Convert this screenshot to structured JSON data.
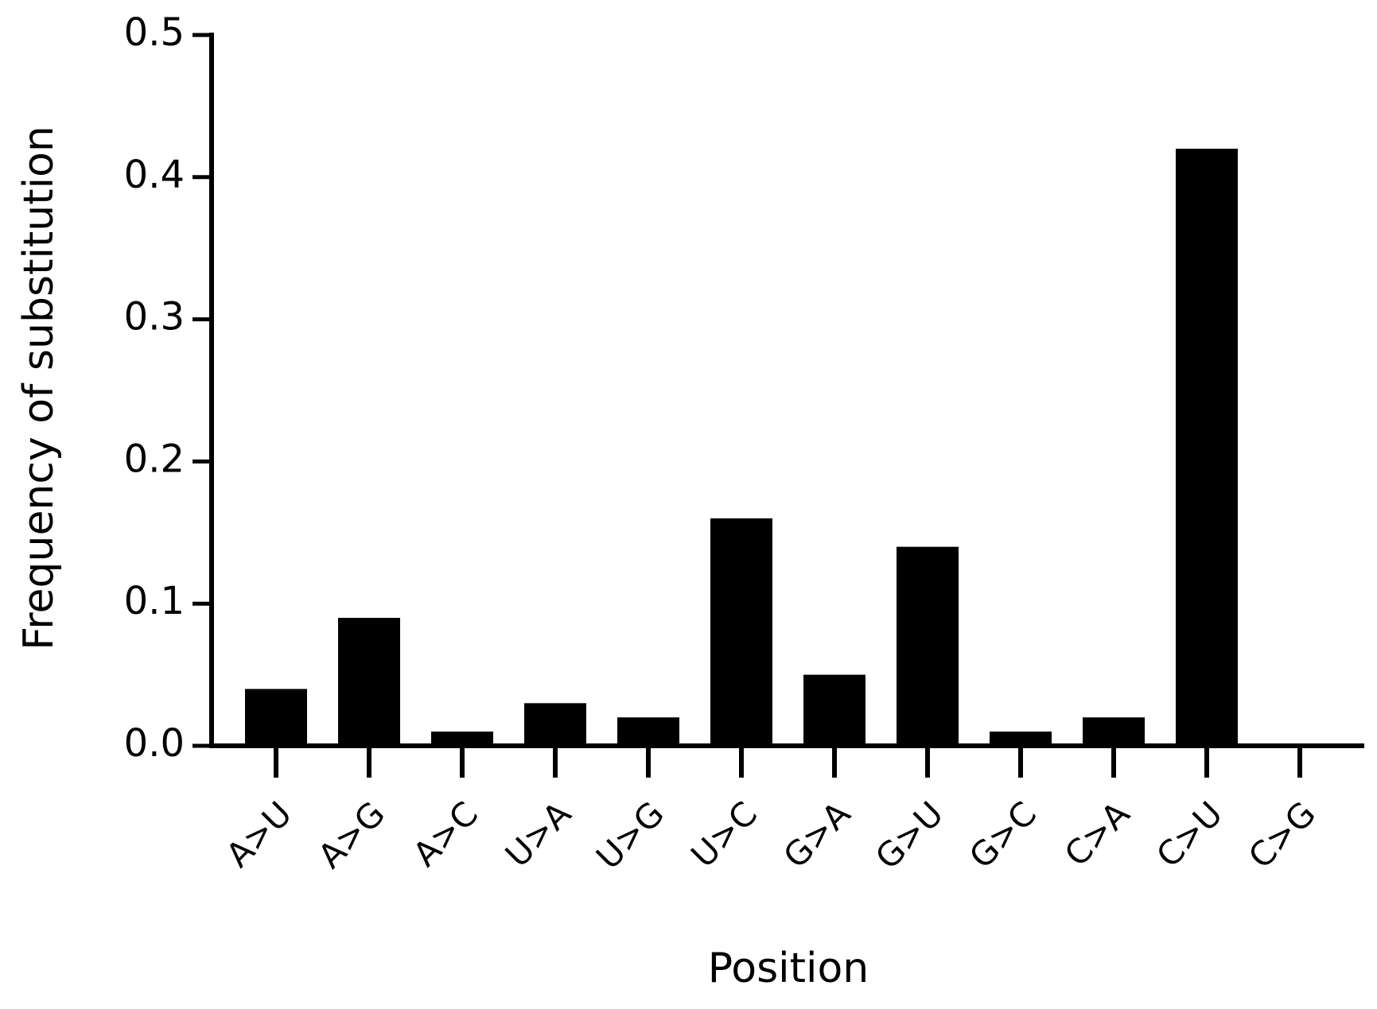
{
  "chart_data": {
    "type": "bar",
    "y_label": "Frequency of substitution",
    "x_label": "Position",
    "categories": [
      "A>U",
      "A>G",
      "A>C",
      "U>A",
      "U>G",
      "U>C",
      "G>A",
      "G>U",
      "G>C",
      "C>A",
      "C>U",
      "C>G"
    ],
    "values": [
      0.04,
      0.09,
      0.01,
      0.03,
      0.02,
      0.16,
      0.05,
      0.14,
      0.01,
      0.02,
      0.42,
      0
    ],
    "color": "#000000",
    "ylim": [
      0,
      0.5
    ],
    "yticks": [
      {
        "value": 0,
        "label": "0.0"
      },
      0.1,
      0.2,
      0.3,
      0.4,
      0.5
    ],
    "grid": false
  }
}
